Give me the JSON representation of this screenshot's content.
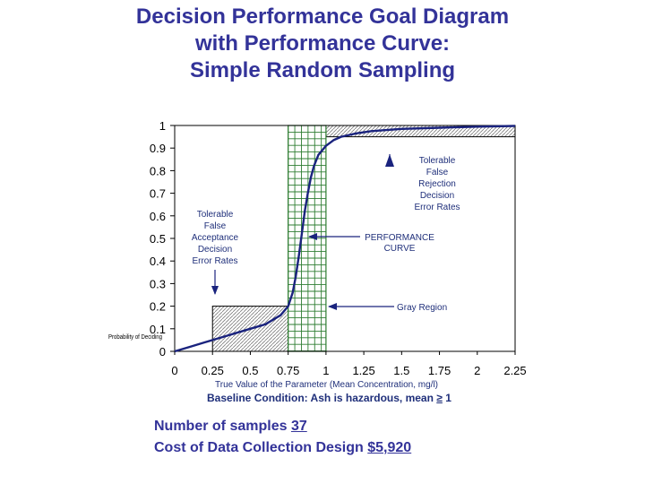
{
  "title": {
    "line1": "Decision Performance Goal Diagram",
    "line2": "with Performance Curve:",
    "line3": "Simple Random Sampling"
  },
  "info": {
    "samples_label": "Number of samples",
    "samples_value": "37",
    "cost_label": "Cost of Data Collection Design",
    "cost_value": "$5,920"
  },
  "colors": {
    "title": "#333399",
    "curve": "#1a237e",
    "gray_region_grid": "#2e7d32",
    "axis": "#000000"
  },
  "chart_data": {
    "type": "line",
    "xlabel": "True Value of the Parameter (Mean Concentration, mg/l)",
    "xlabel2_prefix": "Baseline Condition: Ash is hazardous, mean ",
    "xlabel2_symbol": "≥",
    "xlabel2_suffix": " 1",
    "ylabel": "",
    "xlim": [
      0,
      2.25
    ],
    "ylim": [
      0,
      1
    ],
    "x_ticks": [
      "0",
      "0.25",
      "0.5",
      "0.75",
      "1",
      "1.25",
      "1.5",
      "1.75",
      "2",
      "2.25"
    ],
    "y_ticks": [
      "0",
      "0.1",
      "0.2",
      "0.3",
      "0.4",
      "0.5",
      "0.6",
      "0.7",
      "0.8",
      "0.9",
      "1"
    ],
    "y_tick_values": [
      0,
      0.1,
      0.2,
      0.3,
      0.4,
      0.5,
      0.6,
      0.7,
      0.8,
      0.9,
      1
    ],
    "x_tick_values": [
      0,
      0.25,
      0.5,
      0.75,
      1,
      1.25,
      1.5,
      1.75,
      2,
      2.25
    ],
    "gray_region": [
      0.75,
      1.0
    ],
    "false_acceptance_region": {
      "x": [
        0.25,
        0.75
      ],
      "y": [
        0,
        0.2
      ]
    },
    "false_rejection_region": {
      "x": [
        1.0,
        2.25
      ],
      "y": [
        0.95,
        1.0
      ]
    },
    "series": [
      {
        "x": [
          0,
          0.1,
          0.2,
          0.3,
          0.4,
          0.5,
          0.6,
          0.65,
          0.7,
          0.75,
          0.78,
          0.8,
          0.82,
          0.84,
          0.86,
          0.88,
          0.9,
          0.92,
          0.95,
          1.0,
          1.05,
          1.1,
          1.2,
          1.3,
          1.5,
          1.75,
          2.0,
          2.25
        ],
        "y": [
          0.0,
          0.02,
          0.04,
          0.06,
          0.08,
          0.1,
          0.12,
          0.14,
          0.16,
          0.2,
          0.26,
          0.33,
          0.42,
          0.52,
          0.62,
          0.7,
          0.77,
          0.82,
          0.87,
          0.91,
          0.935,
          0.95,
          0.965,
          0.975,
          0.985,
          0.99,
          0.995,
          0.998
        ]
      }
    ],
    "annotations": {
      "tolerable_false_acceptance": [
        "Tolerable",
        "False",
        "Acceptance",
        "Decision",
        "Error Rates"
      ],
      "tolerable_false_rejection": [
        "Tolerable",
        "False",
        "Rejection",
        "Decision",
        "Error Rates"
      ],
      "performance_curve": [
        "PERFORMANCE",
        "CURVE"
      ],
      "gray_region": "Gray Region",
      "stray_label": "Probability of Deciding"
    }
  }
}
